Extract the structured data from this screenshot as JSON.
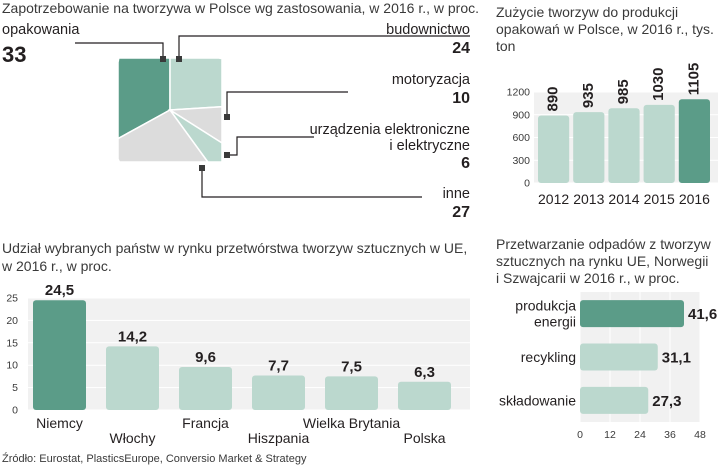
{
  "source": "Źródło: Eurostat, PlasticsEurope, Conversio Market & Strategy",
  "colors": {
    "accent": "#5b9c88",
    "light": "#bbd8ce",
    "grey": "#dcdcdc",
    "bg_grid": "#f1f1f1"
  },
  "chart_data": [
    {
      "type": "pie",
      "title": "Zapotrzebowanie na tworzywa w Polsce wg zastosowania, w 2016 r., w proc.",
      "slices": [
        {
          "label": "opakowania",
          "value": 33
        },
        {
          "label": "budownictwo",
          "value": 24
        },
        {
          "label": "motoryzacja",
          "value": 10
        },
        {
          "label": "urządzenia elektroniczne i elektryczne",
          "label_lines": [
            "urządzenia elektroniczne",
            "i elektryczne"
          ],
          "value": 6
        },
        {
          "label": "inne",
          "value": 27
        }
      ]
    },
    {
      "type": "bar",
      "title": "Zużycie tworzyw do produkcji opakowań w Polsce, w 2016 r., tys. ton",
      "title_lines": [
        "Zużycie tworzyw do produkcji",
        "opakowań w Polsce, w 2016 r., tys.",
        "ton"
      ],
      "categories": [
        "2012",
        "2013",
        "2014",
        "2015",
        "2016"
      ],
      "values": [
        890,
        935,
        985,
        1030,
        1105
      ],
      "value_labels": [
        "890",
        "935",
        "985",
        "1030",
        "1105"
      ],
      "ylim": [
        0,
        1200
      ],
      "yticks": [
        0,
        300,
        600,
        900,
        1200
      ],
      "highlight": "2016"
    },
    {
      "type": "bar",
      "title": "Udział wybranych państw w rynku przetwórstwa tworzyw sztucznych w UE, w 2016 r., w proc.",
      "title_lines": [
        "Udział wybranych państw w rynku przetwórstwa tworzyw sztucznych w UE,",
        "w 2016 r., w proc."
      ],
      "categories": [
        "Niemcy",
        "Włochy",
        "Francja",
        "Hiszpania",
        "Wielka Brytania",
        "Polska"
      ],
      "values": [
        24.5,
        14.2,
        9.6,
        7.7,
        7.5,
        6.3
      ],
      "value_labels": [
        "24,5",
        "14,2",
        "9,6",
        "7,7",
        "7,5",
        "6,3"
      ],
      "ylim": [
        0,
        25
      ],
      "yticks": [
        0,
        5,
        10,
        15,
        20,
        25
      ],
      "highlight": "Niemcy"
    },
    {
      "type": "bar",
      "orientation": "horizontal",
      "title": "Przetwarzanie odpadów z tworzyw sztucznych na rynku UE, Norwegii i Szwajcarii w 2016 r., w proc.",
      "title_lines": [
        "Przetwarzanie odpadów z tworzyw",
        "sztucznych na rynku UE, Norwegii",
        "i Szwajcarii w 2016 r., w proc."
      ],
      "categories": [
        "produkcja energii",
        "recykling",
        "składowanie"
      ],
      "category_lines": [
        [
          "produkcja",
          "energii"
        ],
        [
          "recykling"
        ],
        [
          "składowanie"
        ]
      ],
      "values": [
        41.6,
        31.1,
        27.3
      ],
      "value_labels": [
        "41,6",
        "31,1",
        "27,3"
      ],
      "xlim": [
        0,
        48
      ],
      "xticks": [
        0,
        12,
        24,
        36,
        48
      ],
      "highlight": "produkcja energii"
    }
  ]
}
